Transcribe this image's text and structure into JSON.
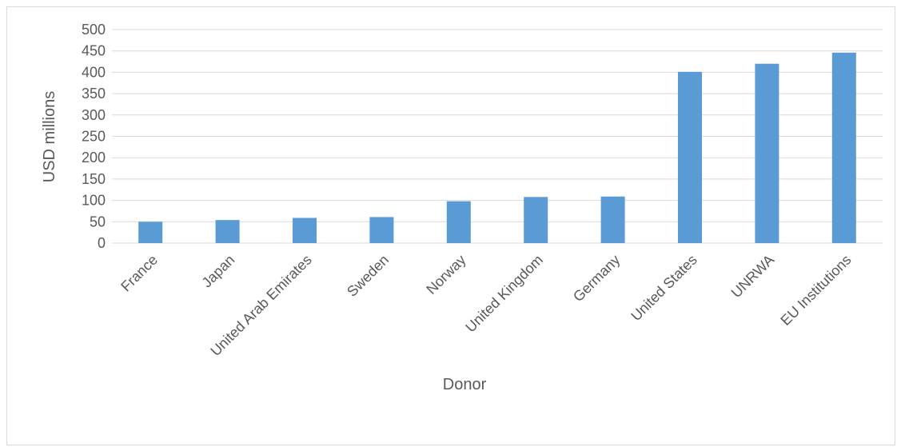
{
  "chart_data": {
    "type": "bar",
    "title": "",
    "xlabel": "Donor",
    "ylabel": "USD millions",
    "ylim": [
      0,
      500
    ],
    "yticks": [
      0,
      50,
      100,
      150,
      200,
      250,
      300,
      350,
      400,
      450,
      500
    ],
    "grid": true,
    "legend": "none",
    "bar_color": "#5b9bd5",
    "categories": [
      "France",
      "Japan",
      "United Arab Emirates",
      "Sweden",
      "Norway",
      "United Kingdom",
      "Germany",
      "United States",
      "UNRWA",
      "EU Institutions"
    ],
    "values": [
      50,
      54,
      59,
      61,
      98,
      108,
      109,
      401,
      420,
      446
    ]
  }
}
